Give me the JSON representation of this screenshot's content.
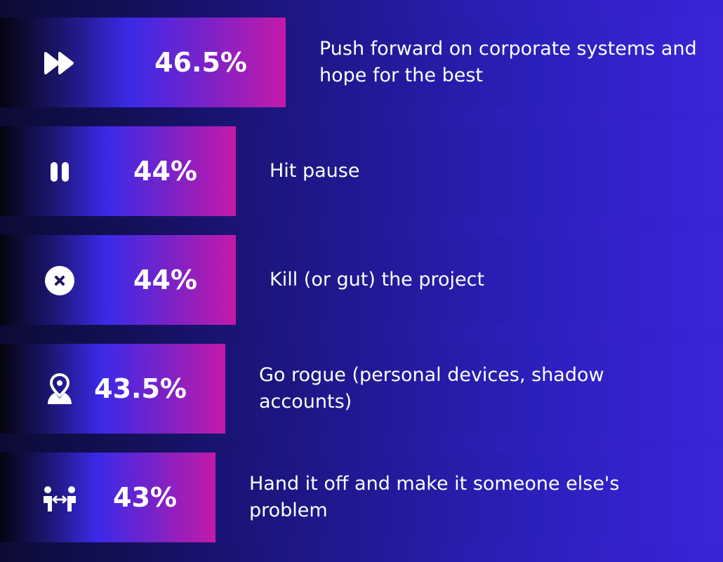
{
  "chart_data": {
    "type": "bar",
    "orientation": "horizontal",
    "categories": [
      "Push forward on corporate systems and hope for the best",
      "Hit pause",
      "Kill (or gut) the project",
      "Go rogue (personal devices, shadow accounts)",
      "Hand it off and make it someone else's problem"
    ],
    "values": [
      46.5,
      44,
      44,
      43.5,
      43
    ],
    "value_labels": [
      "46.5%",
      "44%",
      "44%",
      "43.5%",
      "43%"
    ],
    "icons": [
      "fast-forward-icon",
      "pause-icon",
      "close-circle-icon",
      "user-location-icon",
      "handoff-icon"
    ],
    "title": "",
    "xlabel": "",
    "ylabel": "",
    "grid": false
  },
  "colors": {
    "bar_gradient_start": "#05040f",
    "bar_gradient_mid": "#3a2ae8",
    "bar_gradient_end": "#c41aa8",
    "background": "#1b157a",
    "text": "#ffffff"
  }
}
